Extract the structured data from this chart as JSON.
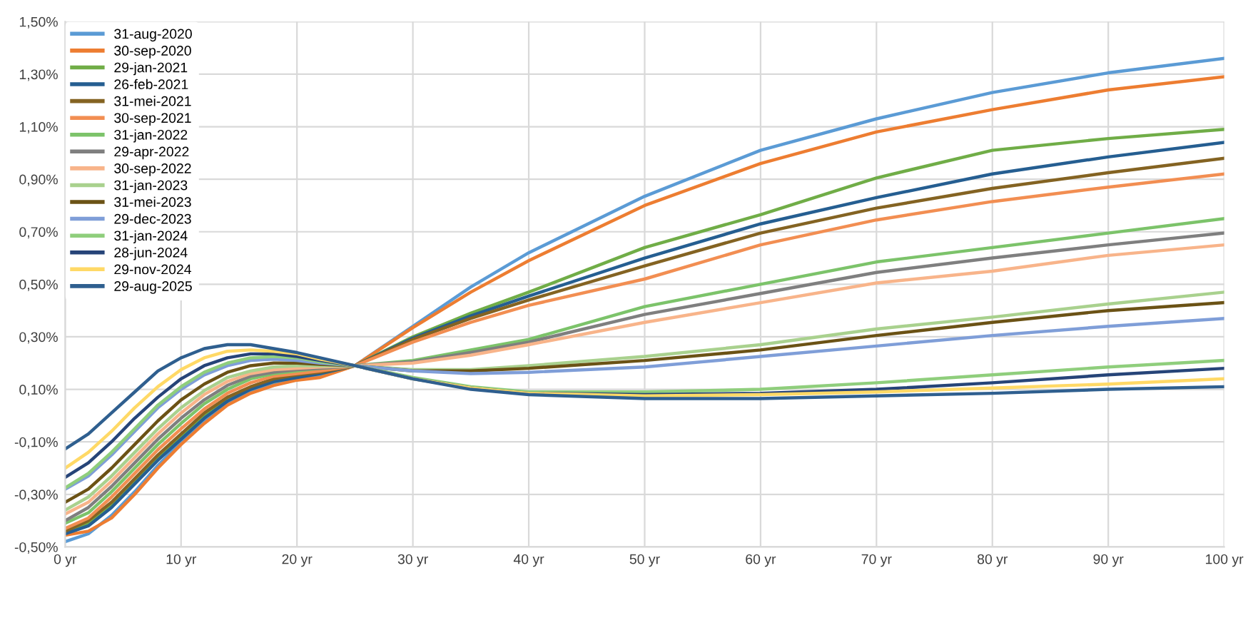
{
  "chart_data": {
    "type": "line",
    "x": [
      0,
      2,
      4,
      6,
      8,
      10,
      12,
      14,
      16,
      18,
      20,
      22,
      25,
      30,
      35,
      40,
      50,
      60,
      70,
      80,
      90,
      100
    ],
    "xlim": [
      0,
      100
    ],
    "ylim": [
      -0.5,
      1.5
    ],
    "xticks": [
      {
        "value": 0,
        "label": "0 yr"
      },
      {
        "value": 10,
        "label": "10 yr"
      },
      {
        "value": 20,
        "label": "20 yr"
      },
      {
        "value": 30,
        "label": "30 yr"
      },
      {
        "value": 40,
        "label": "40 yr"
      },
      {
        "value": 50,
        "label": "50 yr"
      },
      {
        "value": 60,
        "label": "60 yr"
      },
      {
        "value": 70,
        "label": "70 yr"
      },
      {
        "value": 80,
        "label": "80 yr"
      },
      {
        "value": 90,
        "label": "90 yr"
      },
      {
        "value": 100,
        "label": "100 yr"
      }
    ],
    "yticks": [
      {
        "value": -0.5,
        "label": "-0,50%"
      },
      {
        "value": -0.3,
        "label": "-0,30%"
      },
      {
        "value": -0.1,
        "label": "-0,10%"
      },
      {
        "value": 0.1,
        "label": "0,10%"
      },
      {
        "value": 0.3,
        "label": "0,30%"
      },
      {
        "value": 0.5,
        "label": "0,50%"
      },
      {
        "value": 0.7,
        "label": "0,70%"
      },
      {
        "value": 0.9,
        "label": "0,90%"
      },
      {
        "value": 1.1,
        "label": "1,10%"
      },
      {
        "value": 1.3,
        "label": "1,30%"
      },
      {
        "value": 1.5,
        "label": "1,50%"
      }
    ],
    "grid": true,
    "legend": "top left",
    "marker": "none",
    "line_style": "solid",
    "series": [
      {
        "name": "31-aug-2020",
        "color": "#5b9bd5",
        "values": [
          -0.48,
          -0.45,
          -0.38,
          -0.29,
          -0.19,
          -0.1,
          -0.02,
          0.045,
          0.09,
          0.12,
          0.14,
          0.15,
          0.19,
          0.34,
          0.49,
          0.62,
          0.835,
          1.01,
          1.13,
          1.23,
          1.305,
          1.36
        ]
      },
      {
        "name": "30-sep-2020",
        "color": "#ed7d31",
        "values": [
          -0.455,
          -0.44,
          -0.39,
          -0.3,
          -0.2,
          -0.11,
          -0.03,
          0.04,
          0.085,
          0.115,
          0.135,
          0.145,
          0.19,
          0.335,
          0.47,
          0.59,
          0.8,
          0.96,
          1.08,
          1.165,
          1.24,
          1.29
        ]
      },
      {
        "name": "29-jan-2021",
        "color": "#70ad47",
        "values": [
          -0.445,
          -0.41,
          -0.34,
          -0.25,
          -0.16,
          -0.08,
          0.0,
          0.06,
          0.105,
          0.13,
          0.15,
          0.16,
          0.19,
          0.3,
          0.39,
          0.47,
          0.64,
          0.765,
          0.905,
          1.01,
          1.055,
          1.09
        ]
      },
      {
        "name": "26-feb-2021",
        "color": "#255e91",
        "values": [
          -0.45,
          -0.42,
          -0.35,
          -0.26,
          -0.17,
          -0.09,
          -0.01,
          0.055,
          0.1,
          0.13,
          0.145,
          0.16,
          0.19,
          0.295,
          0.38,
          0.455,
          0.6,
          0.73,
          0.83,
          0.92,
          0.985,
          1.04
        ]
      },
      {
        "name": "31-mei-2021",
        "color": "#846322",
        "values": [
          -0.44,
          -0.4,
          -0.33,
          -0.24,
          -0.15,
          -0.07,
          0.01,
          0.07,
          0.11,
          0.14,
          0.155,
          0.165,
          0.19,
          0.29,
          0.37,
          0.44,
          0.57,
          0.695,
          0.79,
          0.865,
          0.925,
          0.98
        ]
      },
      {
        "name": "30-sep-2021",
        "color": "#f28e52",
        "values": [
          -0.43,
          -0.39,
          -0.31,
          -0.22,
          -0.13,
          -0.05,
          0.025,
          0.085,
          0.125,
          0.15,
          0.16,
          0.17,
          0.19,
          0.28,
          0.355,
          0.42,
          0.52,
          0.65,
          0.745,
          0.815,
          0.87,
          0.92
        ]
      },
      {
        "name": "31-jan-2022",
        "color": "#7cc36a",
        "values": [
          -0.41,
          -0.37,
          -0.29,
          -0.2,
          -0.11,
          -0.03,
          0.045,
          0.1,
          0.14,
          0.16,
          0.17,
          0.18,
          0.19,
          0.21,
          0.25,
          0.29,
          0.415,
          0.5,
          0.585,
          0.64,
          0.695,
          0.75
        ]
      },
      {
        "name": "29-apr-2022",
        "color": "#7f7f7f",
        "values": [
          -0.4,
          -0.35,
          -0.27,
          -0.18,
          -0.09,
          -0.01,
          0.06,
          0.115,
          0.15,
          0.165,
          0.175,
          0.18,
          0.19,
          0.205,
          0.24,
          0.28,
          0.385,
          0.465,
          0.545,
          0.6,
          0.65,
          0.695
        ]
      },
      {
        "name": "30-sep-2022",
        "color": "#f8b48a",
        "values": [
          -0.375,
          -0.33,
          -0.25,
          -0.16,
          -0.07,
          0.01,
          0.08,
          0.13,
          0.16,
          0.175,
          0.18,
          0.185,
          0.19,
          0.2,
          0.23,
          0.27,
          0.355,
          0.43,
          0.505,
          0.55,
          0.61,
          0.65
        ]
      },
      {
        "name": "31-jan-2023",
        "color": "#a9d18e",
        "values": [
          -0.36,
          -0.31,
          -0.23,
          -0.14,
          -0.05,
          0.03,
          0.095,
          0.145,
          0.17,
          0.185,
          0.19,
          0.19,
          0.19,
          0.175,
          0.175,
          0.19,
          0.225,
          0.27,
          0.33,
          0.375,
          0.425,
          0.47
        ]
      },
      {
        "name": "31-mei-2023",
        "color": "#6b5215",
        "values": [
          -0.33,
          -0.28,
          -0.2,
          -0.11,
          -0.02,
          0.06,
          0.12,
          0.165,
          0.19,
          0.2,
          0.2,
          0.195,
          0.19,
          0.17,
          0.17,
          0.18,
          0.21,
          0.25,
          0.305,
          0.355,
          0.4,
          0.43
        ]
      },
      {
        "name": "29-dec-2023",
        "color": "#7f9ed8",
        "values": [
          -0.28,
          -0.23,
          -0.15,
          -0.06,
          0.03,
          0.1,
          0.155,
          0.19,
          0.21,
          0.215,
          0.21,
          0.2,
          0.19,
          0.17,
          0.16,
          0.165,
          0.185,
          0.225,
          0.265,
          0.305,
          0.34,
          0.37
        ]
      },
      {
        "name": "31-jan-2024",
        "color": "#8fce7c",
        "values": [
          -0.275,
          -0.22,
          -0.14,
          -0.05,
          0.04,
          0.11,
          0.165,
          0.2,
          0.22,
          0.225,
          0.22,
          0.205,
          0.19,
          0.145,
          0.11,
          0.09,
          0.09,
          0.1,
          0.125,
          0.155,
          0.185,
          0.21
        ]
      },
      {
        "name": "28-jun-2024",
        "color": "#264478",
        "values": [
          -0.235,
          -0.18,
          -0.1,
          -0.01,
          0.07,
          0.14,
          0.19,
          0.22,
          0.235,
          0.235,
          0.225,
          0.21,
          0.19,
          0.14,
          0.105,
          0.085,
          0.08,
          0.085,
          0.1,
          0.125,
          0.155,
          0.18
        ]
      },
      {
        "name": "29-nov-2024",
        "color": "#ffd966",
        "values": [
          -0.2,
          -0.14,
          -0.06,
          0.03,
          0.11,
          0.175,
          0.22,
          0.245,
          0.25,
          0.245,
          0.235,
          0.215,
          0.19,
          0.14,
          0.105,
          0.085,
          0.075,
          0.08,
          0.09,
          0.105,
          0.12,
          0.14
        ]
      },
      {
        "name": "29-aug-2025",
        "color": "#2f5f8f",
        "values": [
          -0.127,
          -0.07,
          0.01,
          0.09,
          0.17,
          0.22,
          0.255,
          0.27,
          0.27,
          0.255,
          0.24,
          0.22,
          0.19,
          0.14,
          0.1,
          0.08,
          0.065,
          0.065,
          0.075,
          0.085,
          0.1,
          0.11
        ]
      }
    ]
  }
}
